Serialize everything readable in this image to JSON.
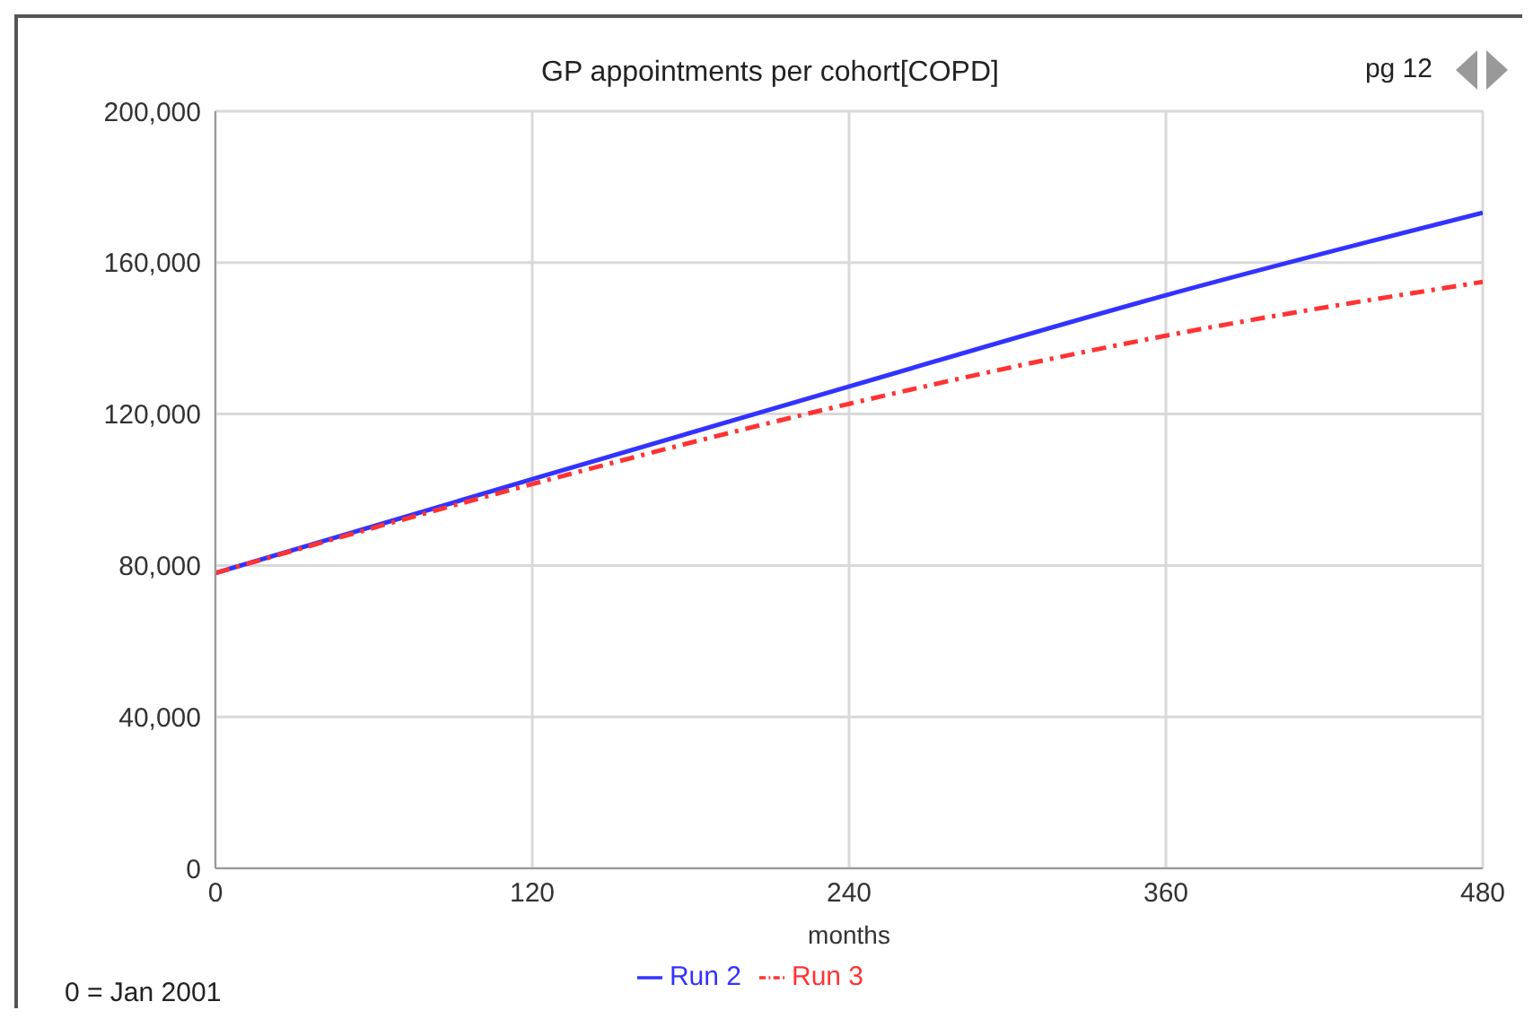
{
  "chart_data": {
    "type": "line",
    "title": "GP appointments per cohort[COPD]",
    "xlabel": "months",
    "x": [
      0,
      120,
      240,
      360,
      480
    ],
    "series": [
      {
        "name": "Run 2",
        "color": "#3333ff",
        "values": [
          78000,
          102800,
          127300,
          151400,
          173200
        ],
        "line_style": "solid"
      },
      {
        "name": "Run 3",
        "color": "#ff3333",
        "values": [
          78000,
          101500,
          122700,
          140700,
          154900
        ],
        "line_style": "dashed"
      }
    ],
    "xlim": [
      0,
      480
    ],
    "xticks": [
      0,
      120,
      240,
      360,
      480
    ],
    "ylim": [
      0,
      200000
    ],
    "yticks": [
      0,
      {
        "value": 40000,
        "label": "40,000"
      },
      {
        "value": 80000,
        "label": "80,000"
      },
      {
        "value": 120000,
        "label": "120,000"
      },
      {
        "value": 160000,
        "label": "160,000"
      },
      {
        "value": 200000,
        "label": "200,000"
      }
    ],
    "grid": true,
    "legend": "bottom",
    "marker": "none",
    "annotations": [
      "pg 12",
      "0 = Jan 2001"
    ]
  }
}
